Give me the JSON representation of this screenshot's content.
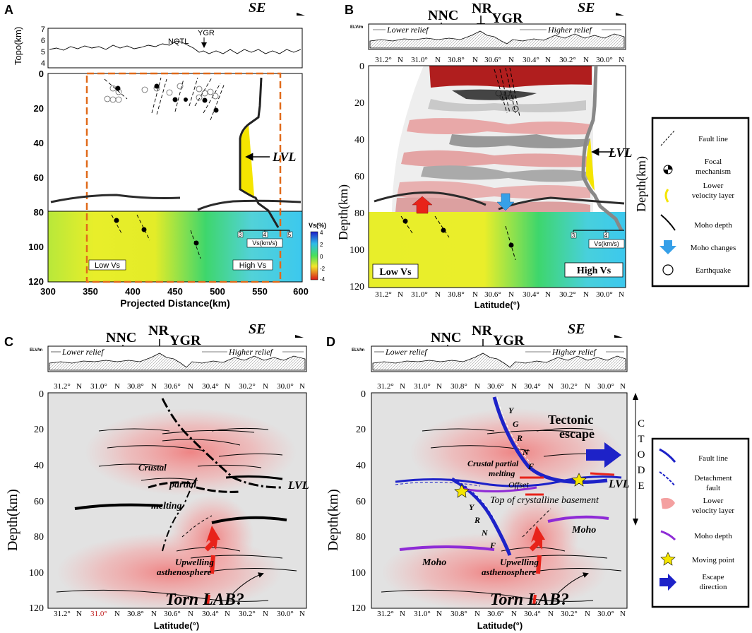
{
  "panels": {
    "a": {
      "letter": "A",
      "direction": "SE",
      "topo_ylabel": "Topo(km)",
      "topo_ticks": [
        "7",
        "6",
        "5",
        "4"
      ],
      "topo_labels": {
        "nqtl": "NQTL",
        "ygr": "YGR"
      },
      "depth_ticks": [
        "0",
        "20",
        "40",
        "60",
        "80",
        "100",
        "120"
      ],
      "depth_label": "Depth(km)",
      "x_ticks": [
        "300",
        "350",
        "400",
        "450",
        "500",
        "550",
        "600"
      ],
      "xlabel": "Projected Distance(km)",
      "lvl": "LVL",
      "low_vs": "Low Vs",
      "high_vs": "High Vs",
      "vs_scale": {
        "ticks": [
          "3",
          "4",
          "5"
        ],
        "label": "Vs(km/s)"
      },
      "colorbar": {
        "title": "Vs(%)",
        "ticks": [
          "4",
          "2",
          "0",
          "-2",
          "-4"
        ]
      }
    },
    "b": {
      "letter": "B",
      "direction": "SE",
      "elv": "ELV/m",
      "relief_low": "Lower relief",
      "relief_high": "Higher relief",
      "top_labels": {
        "nnc": "NNC",
        "nr": "NR",
        "ygr": "YGR"
      },
      "lat_ticks": [
        "31.2°",
        "N",
        "31.0°",
        "N",
        "30.8°",
        "N",
        "30.6°",
        "N",
        "30.4°",
        "N",
        "30.2°",
        "N",
        "30.0°",
        "N"
      ],
      "depth_ticks": [
        "0",
        "20",
        "40",
        "60",
        "80",
        "100",
        "120"
      ],
      "depth_label": "Depth(km)",
      "xlabel": "Latitude(°)",
      "lvl": "LVL",
      "low_vs": "Low Vs",
      "high_vs": "High Vs",
      "vs_scale": {
        "ticks": [
          "3",
          "4"
        ],
        "label": "Vs(km/s)"
      }
    },
    "c": {
      "letter": "C",
      "direction": "SE",
      "elv": "ELV/m",
      "relief_low": "Lower relief",
      "relief_high": "Higher relief",
      "top_labels": {
        "nnc": "NNC",
        "nr": "NR",
        "ygr": "YGR"
      },
      "lat_ticks": [
        "31.2°",
        "N",
        "31.0°",
        "N",
        "30.8°",
        "N",
        "30.6°",
        "N",
        "30.4°",
        "N",
        "30.2°",
        "N",
        "30.0°",
        "N"
      ],
      "depth_ticks": [
        "0",
        "20",
        "40",
        "60",
        "80",
        "100",
        "120"
      ],
      "depth_label": "Depth(km)",
      "xlabel": "Latitude(°)",
      "crustal": "Crustal",
      "partial": "partial",
      "melting": "melting",
      "lvl": "LVL",
      "upwelling": "Upwelling",
      "asthenosphere": "asthenosphere",
      "torn": "Torn LAB?"
    },
    "d": {
      "letter": "D",
      "direction": "SE",
      "elv": "ELV/m",
      "relief_low": "Lower relief",
      "relief_high": "Higher relief",
      "top_labels": {
        "nnc": "NNC",
        "nr": "NR",
        "ygr": "YGR"
      },
      "lat_ticks": [
        "31.2°",
        "N",
        "31.0°",
        "N",
        "30.8°",
        "N",
        "30.6°",
        "N",
        "30.4°",
        "N",
        "30.2°",
        "N",
        "30.0°",
        "N"
      ],
      "depth_ticks": [
        "0",
        "20",
        "40",
        "60",
        "80",
        "100",
        "120"
      ],
      "depth_label": "Depth(km)",
      "xlabel": "Latitude(°)",
      "ygrnf_letters": [
        "Y",
        "G",
        "R",
        "N",
        "F"
      ],
      "tectonic": "Tectonic",
      "escape": "escape",
      "crustal_partial": "Crustal partial",
      "melting": "melting",
      "offset": "Offset",
      "top_basement": "Top of crystalline basement",
      "lvl": "LVL",
      "moho": "Moho",
      "upwelling": "Upwelling",
      "asthenosphere": "asthenosphere",
      "torn": "Torn LAB?",
      "ctode": [
        "C",
        "T",
        "O",
        "D",
        "E"
      ]
    }
  },
  "legend_b": [
    {
      "label": "Fault line"
    },
    {
      "label": "Focal mechanism"
    },
    {
      "label": "Lower velocity layer"
    },
    {
      "label": "Moho depth"
    },
    {
      "label": "Moho changes"
    },
    {
      "label": "Earthquake"
    }
  ],
  "legend_d": [
    {
      "label": "Fault line"
    },
    {
      "label": "Detachment fault"
    },
    {
      "label": "Lower velocity layer"
    },
    {
      "label": "Moho depth"
    },
    {
      "label": "Moving point"
    },
    {
      "label": "Escape direction"
    }
  ],
  "colors": {
    "orange_box": "#e06a1a",
    "moho": "#2b2b2b",
    "purple_moho": "#8e2bd6",
    "blue_fault": "#1d22c8",
    "red": "#e8231a",
    "yellow": "#f5e500"
  }
}
